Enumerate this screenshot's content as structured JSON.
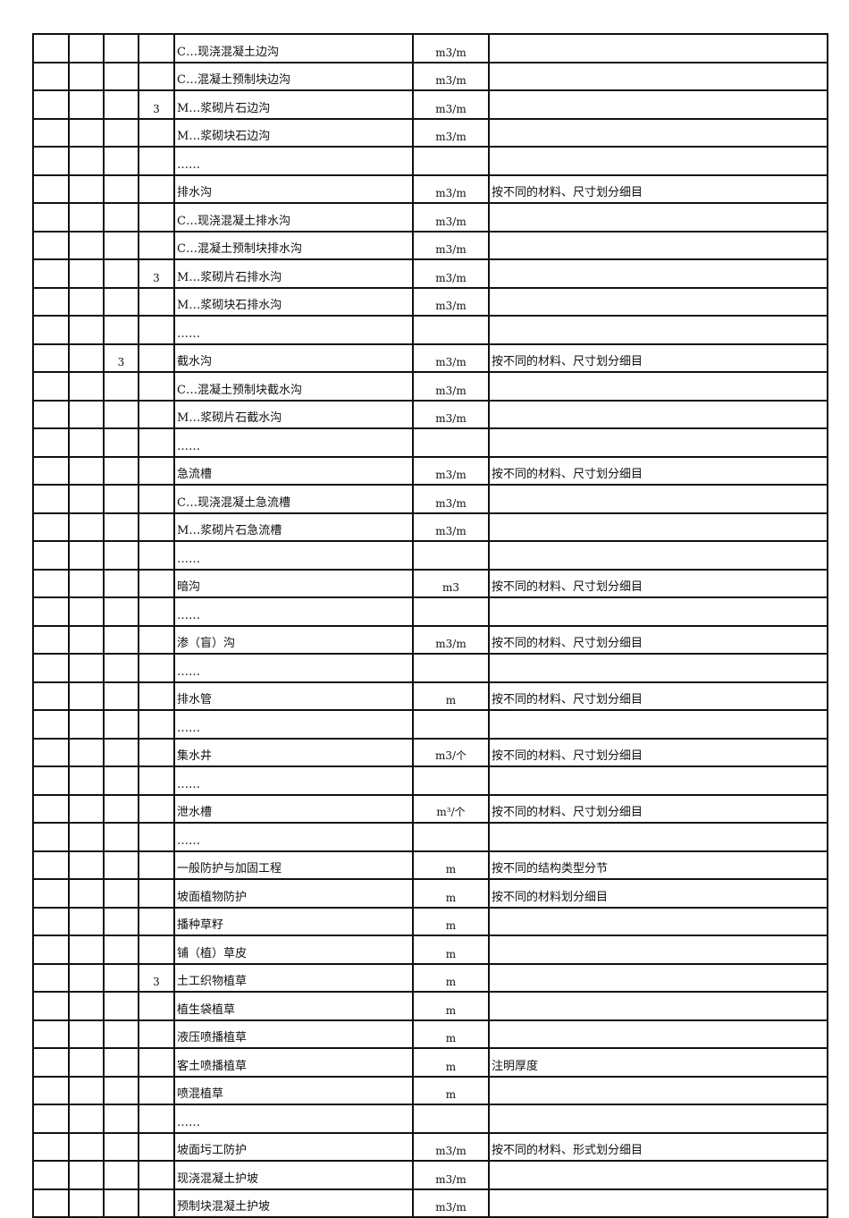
{
  "rows": [
    {
      "c1": "",
      "c2": "",
      "c3": "",
      "name": "C…现浇混凝土边沟",
      "unit": "m3/m",
      "note": ""
    },
    {
      "c1": "",
      "c2": "",
      "c3": "",
      "name": "C…混凝土预制块边沟",
      "unit": "m3/m",
      "note": ""
    },
    {
      "c1": "",
      "c2": "",
      "c3": "3",
      "name": "M…浆砌片石边沟",
      "unit": "m3/m",
      "note": ""
    },
    {
      "c1": "",
      "c2": "",
      "c3": "",
      "name": "M…浆砌块石边沟",
      "unit": "m3/m",
      "note": ""
    },
    {
      "c1": "",
      "c2": "",
      "c3": "",
      "name": "……",
      "unit": "",
      "note": ""
    },
    {
      "c1": "",
      "c2": "",
      "c3": "",
      "name": "排水沟",
      "unit": "m3/m",
      "note": "按不同的材料、尺寸划分细目"
    },
    {
      "c1": "",
      "c2": "",
      "c3": "",
      "name": "C…现浇混凝土排水沟",
      "unit": "m3/m",
      "note": ""
    },
    {
      "c1": "",
      "c2": "",
      "c3": "",
      "name": "C…混凝土预制块排水沟",
      "unit": "m3/m",
      "note": ""
    },
    {
      "c1": "",
      "c2": "",
      "c3": "3",
      "name": "M…浆砌片石排水沟",
      "unit": "m3/m",
      "note": ""
    },
    {
      "c1": "",
      "c2": "",
      "c3": "",
      "name": "M…浆砌块石排水沟",
      "unit": "m3/m",
      "note": ""
    },
    {
      "c1": "",
      "c2": "",
      "c3": "",
      "name": "……",
      "unit": "",
      "note": ""
    },
    {
      "c1": "",
      "c2": "3",
      "c3": "",
      "name": "截水沟",
      "unit": "m3/m",
      "note": "按不同的材料、尺寸划分细目"
    },
    {
      "c1": "",
      "c2": "",
      "c3": "",
      "name": "C…混凝土预制块截水沟",
      "unit": "m3/m",
      "note": ""
    },
    {
      "c1": "",
      "c2": "",
      "c3": "",
      "name": "M…浆砌片石截水沟",
      "unit": "m3/m",
      "note": ""
    },
    {
      "c1": "",
      "c2": "",
      "c3": "",
      "name": "……",
      "unit": "",
      "note": ""
    },
    {
      "c1": "",
      "c2": "",
      "c3": "",
      "name": "急流槽",
      "unit": "m3/m",
      "note": "按不同的材料、尺寸划分细目"
    },
    {
      "c1": "",
      "c2": "",
      "c3": "",
      "name": "C…现浇混凝土急流槽",
      "unit": "m3/m",
      "note": ""
    },
    {
      "c1": "",
      "c2": "",
      "c3": "",
      "name": "M…浆砌片石急流槽",
      "unit": "m3/m",
      "note": ""
    },
    {
      "c1": "",
      "c2": "",
      "c3": "",
      "name": "……",
      "unit": "",
      "note": ""
    },
    {
      "c1": "",
      "c2": "",
      "c3": "",
      "name": "暗沟",
      "unit": "m3",
      "note": "按不同的材料、尺寸划分细目"
    },
    {
      "c1": "",
      "c2": "",
      "c3": "",
      "name": "……",
      "unit": "",
      "note": ""
    },
    {
      "c1": "",
      "c2": "",
      "c3": "",
      "name": "渗（盲）沟",
      "unit": "m3/m",
      "note": "按不同的材料、尺寸划分细目"
    },
    {
      "c1": "",
      "c2": "",
      "c3": "",
      "name": "……",
      "unit": "",
      "note": ""
    },
    {
      "c1": "",
      "c2": "",
      "c3": "",
      "name": "排水管",
      "unit": "m",
      "note": "按不同的材料、尺寸划分细目"
    },
    {
      "c1": "",
      "c2": "",
      "c3": "",
      "name": "……",
      "unit": "",
      "note": ""
    },
    {
      "c1": "",
      "c2": "",
      "c3": "",
      "name": "集水井",
      "unit": "m3/个",
      "note": "按不同的材料、尺寸划分细目"
    },
    {
      "c1": "",
      "c2": "",
      "c3": "",
      "name": "……",
      "unit": "",
      "note": ""
    },
    {
      "c1": "",
      "c2": "",
      "c3": "",
      "name": "泄水槽",
      "unit": "m³/个",
      "note": "按不同的材料、尺寸划分细目"
    },
    {
      "c1": "",
      "c2": "",
      "c3": "",
      "name": "……",
      "unit": "",
      "note": ""
    },
    {
      "c1": "",
      "c2": "",
      "c3": "",
      "name": "一般防护与加固工程",
      "unit": "m",
      "note": "按不同的结构类型分节"
    },
    {
      "c1": "",
      "c2": "",
      "c3": "",
      "name": "坡面植物防护",
      "unit": "m",
      "note": "按不同的材料划分细目"
    },
    {
      "c1": "",
      "c2": "",
      "c3": "",
      "name": "播种草籽",
      "unit": "m",
      "note": ""
    },
    {
      "c1": "",
      "c2": "",
      "c3": "",
      "name": "铺（植）草皮",
      "unit": "m",
      "note": ""
    },
    {
      "c1": "",
      "c2": "",
      "c3": "3",
      "name": "土工织物植草",
      "unit": "m",
      "note": ""
    },
    {
      "c1": "",
      "c2": "",
      "c3": "",
      "name": "植生袋植草",
      "unit": "m",
      "note": ""
    },
    {
      "c1": "",
      "c2": "",
      "c3": "",
      "name": "液压喷播植草",
      "unit": "m",
      "note": ""
    },
    {
      "c1": "",
      "c2": "",
      "c3": "",
      "name": "客土喷播植草",
      "unit": "m",
      "note": "注明厚度"
    },
    {
      "c1": "",
      "c2": "",
      "c3": "",
      "name": "喷混植草",
      "unit": "m",
      "note": ""
    },
    {
      "c1": "",
      "c2": "",
      "c3": "",
      "name": "……",
      "unit": "",
      "note": ""
    },
    {
      "c1": "",
      "c2": "",
      "c3": "",
      "name": "坡面圬工防护",
      "unit": "m3/m",
      "note": "按不同的材料、形式划分细目"
    },
    {
      "c1": "",
      "c2": "",
      "c3": "",
      "name": "现浇混凝土护坡",
      "unit": "m3/m",
      "note": ""
    },
    {
      "c1": "",
      "c2": "",
      "c3": "",
      "name": "预制块混凝土护坡",
      "unit": "m3/m",
      "note": ""
    }
  ]
}
